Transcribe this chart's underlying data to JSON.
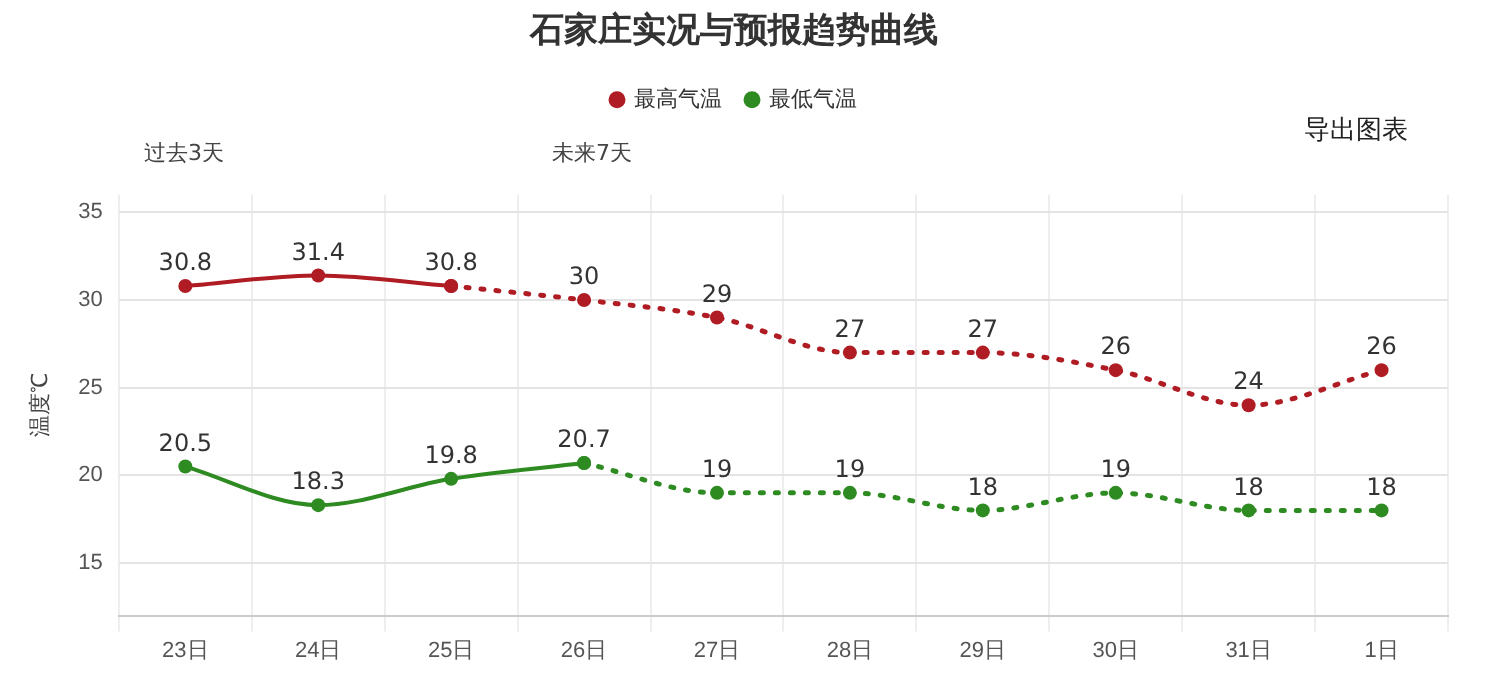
{
  "chart_data": {
    "type": "line",
    "title": "石家庄实况与预报趋势曲线",
    "ylabel": "温度℃",
    "categories": [
      "23日",
      "24日",
      "25日",
      "26日",
      "27日",
      "28日",
      "29日",
      "30日",
      "31日",
      "1日"
    ],
    "series": [
      {
        "name": "最高气温",
        "color": "#b01c24",
        "line_style": "solid",
        "values": [
          30.8,
          31.4,
          30.8,
          null,
          null,
          null,
          null,
          null,
          null,
          null
        ],
        "value_labels": [
          "30.8",
          "31.4",
          "30.8",
          null,
          null,
          null,
          null,
          null,
          null,
          null
        ]
      },
      {
        "color": "#b01c24",
        "line_style": "dotted",
        "values": [
          null,
          null,
          30.8,
          30,
          29,
          27,
          27,
          26,
          24,
          26
        ],
        "value_labels": [
          null,
          null,
          null,
          "30",
          "29",
          "27",
          "27",
          "26",
          "24",
          "26"
        ]
      },
      {
        "name": "最低气温",
        "color": "#2e8b22",
        "line_style": "solid",
        "values": [
          20.5,
          18.3,
          19.8,
          20.7,
          null,
          null,
          null,
          null,
          null,
          null
        ],
        "value_labels": [
          "20.5",
          "18.3",
          "19.8",
          "20.7",
          null,
          null,
          null,
          null,
          null,
          null
        ]
      },
      {
        "color": "#2e8b22",
        "line_style": "dotted",
        "values": [
          null,
          null,
          null,
          20.7,
          19,
          19,
          18,
          19,
          18,
          18
        ],
        "value_labels": [
          null,
          null,
          null,
          null,
          "19",
          "19",
          "18",
          "19",
          "18",
          "18"
        ]
      }
    ],
    "ylim": [
      12,
      36
    ],
    "yticks": [
      15,
      20,
      25,
      30,
      35
    ],
    "grid": true,
    "legend": "top",
    "marker": "circle",
    "annotations": [
      "过去3天",
      "未来7天",
      "导出图表"
    ]
  }
}
